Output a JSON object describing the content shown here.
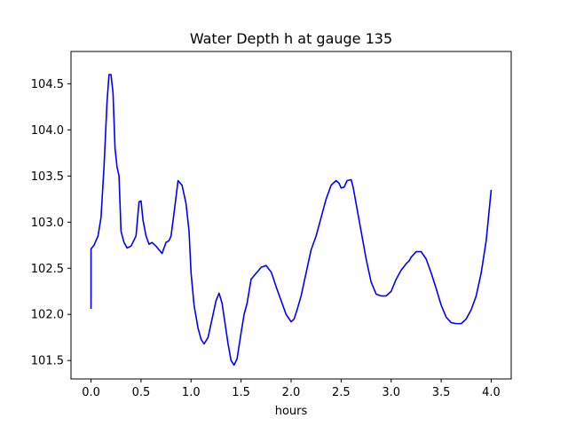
{
  "chart_data": {
    "type": "line",
    "title": "Water Depth h at gauge 135",
    "xlabel": "hours",
    "ylabel": "",
    "xlim": [
      -0.2,
      4.2
    ],
    "ylim": [
      101.3,
      104.85
    ],
    "x_ticks": [
      0.0,
      0.5,
      1.0,
      1.5,
      2.0,
      2.5,
      3.0,
      3.5,
      4.0
    ],
    "x_tick_labels": [
      "0.0",
      "0.5",
      "1.0",
      "1.5",
      "2.0",
      "2.5",
      "3.0",
      "3.5",
      "4.0"
    ],
    "y_ticks": [
      101.5,
      102.0,
      102.5,
      103.0,
      103.5,
      104.0,
      104.5
    ],
    "y_tick_labels": [
      "101.5",
      "102.0",
      "102.5",
      "103.0",
      "103.5",
      "104.0",
      "104.5"
    ],
    "grid": false,
    "legend": "none",
    "series": [
      {
        "color": "#0000ff",
        "x": [
          0.0,
          0.0,
          0.03,
          0.07,
          0.1,
          0.13,
          0.16,
          0.18,
          0.2,
          0.22,
          0.24,
          0.26,
          0.28,
          0.3,
          0.33,
          0.36,
          0.4,
          0.45,
          0.48,
          0.5,
          0.52,
          0.55,
          0.58,
          0.61,
          0.65,
          0.68,
          0.71,
          0.75,
          0.78,
          0.8,
          0.83,
          0.87,
          0.91,
          0.95,
          0.98,
          1.0,
          1.03,
          1.07,
          1.1,
          1.13,
          1.17,
          1.21,
          1.25,
          1.28,
          1.31,
          1.34,
          1.37,
          1.4,
          1.43,
          1.46,
          1.5,
          1.53,
          1.56,
          1.6,
          1.63,
          1.67,
          1.7,
          1.75,
          1.8,
          1.82,
          1.85,
          1.9,
          1.95,
          2.0,
          2.03,
          2.06,
          2.1,
          2.15,
          2.2,
          2.25,
          2.3,
          2.35,
          2.4,
          2.45,
          2.48,
          2.5,
          2.53,
          2.56,
          2.6,
          2.62,
          2.65,
          2.7,
          2.75,
          2.8,
          2.85,
          2.9,
          2.95,
          3.0,
          3.05,
          3.1,
          3.13,
          3.15,
          3.18,
          3.2,
          3.25,
          3.3,
          3.35,
          3.4,
          3.45,
          3.5,
          3.55,
          3.6,
          3.65,
          3.7,
          3.75,
          3.8,
          3.85,
          3.9,
          3.95,
          4.0
        ],
        "y": [
          102.06,
          102.71,
          102.75,
          102.85,
          103.05,
          103.6,
          104.3,
          104.6,
          104.6,
          104.4,
          103.8,
          103.6,
          103.5,
          102.9,
          102.78,
          102.72,
          102.74,
          102.85,
          103.22,
          103.23,
          103.02,
          102.85,
          102.76,
          102.78,
          102.74,
          102.7,
          102.66,
          102.78,
          102.8,
          102.85,
          103.1,
          103.45,
          103.4,
          103.2,
          102.9,
          102.45,
          102.1,
          101.85,
          101.73,
          101.68,
          101.75,
          101.95,
          102.15,
          102.23,
          102.12,
          101.9,
          101.68,
          101.5,
          101.45,
          101.52,
          101.8,
          102.0,
          102.12,
          102.38,
          102.42,
          102.47,
          102.51,
          102.53,
          102.46,
          102.4,
          102.3,
          102.15,
          102.0,
          101.92,
          101.95,
          102.05,
          102.2,
          102.45,
          102.7,
          102.85,
          103.05,
          103.25,
          103.4,
          103.45,
          103.42,
          103.37,
          103.38,
          103.45,
          103.46,
          103.38,
          103.2,
          102.9,
          102.6,
          102.35,
          102.22,
          102.2,
          102.2,
          102.25,
          102.38,
          102.48,
          102.52,
          102.55,
          102.58,
          102.62,
          102.68,
          102.68,
          102.6,
          102.45,
          102.28,
          102.1,
          101.97,
          101.91,
          101.9,
          101.9,
          101.95,
          102.05,
          102.2,
          102.45,
          102.8,
          103.35
        ]
      }
    ]
  }
}
